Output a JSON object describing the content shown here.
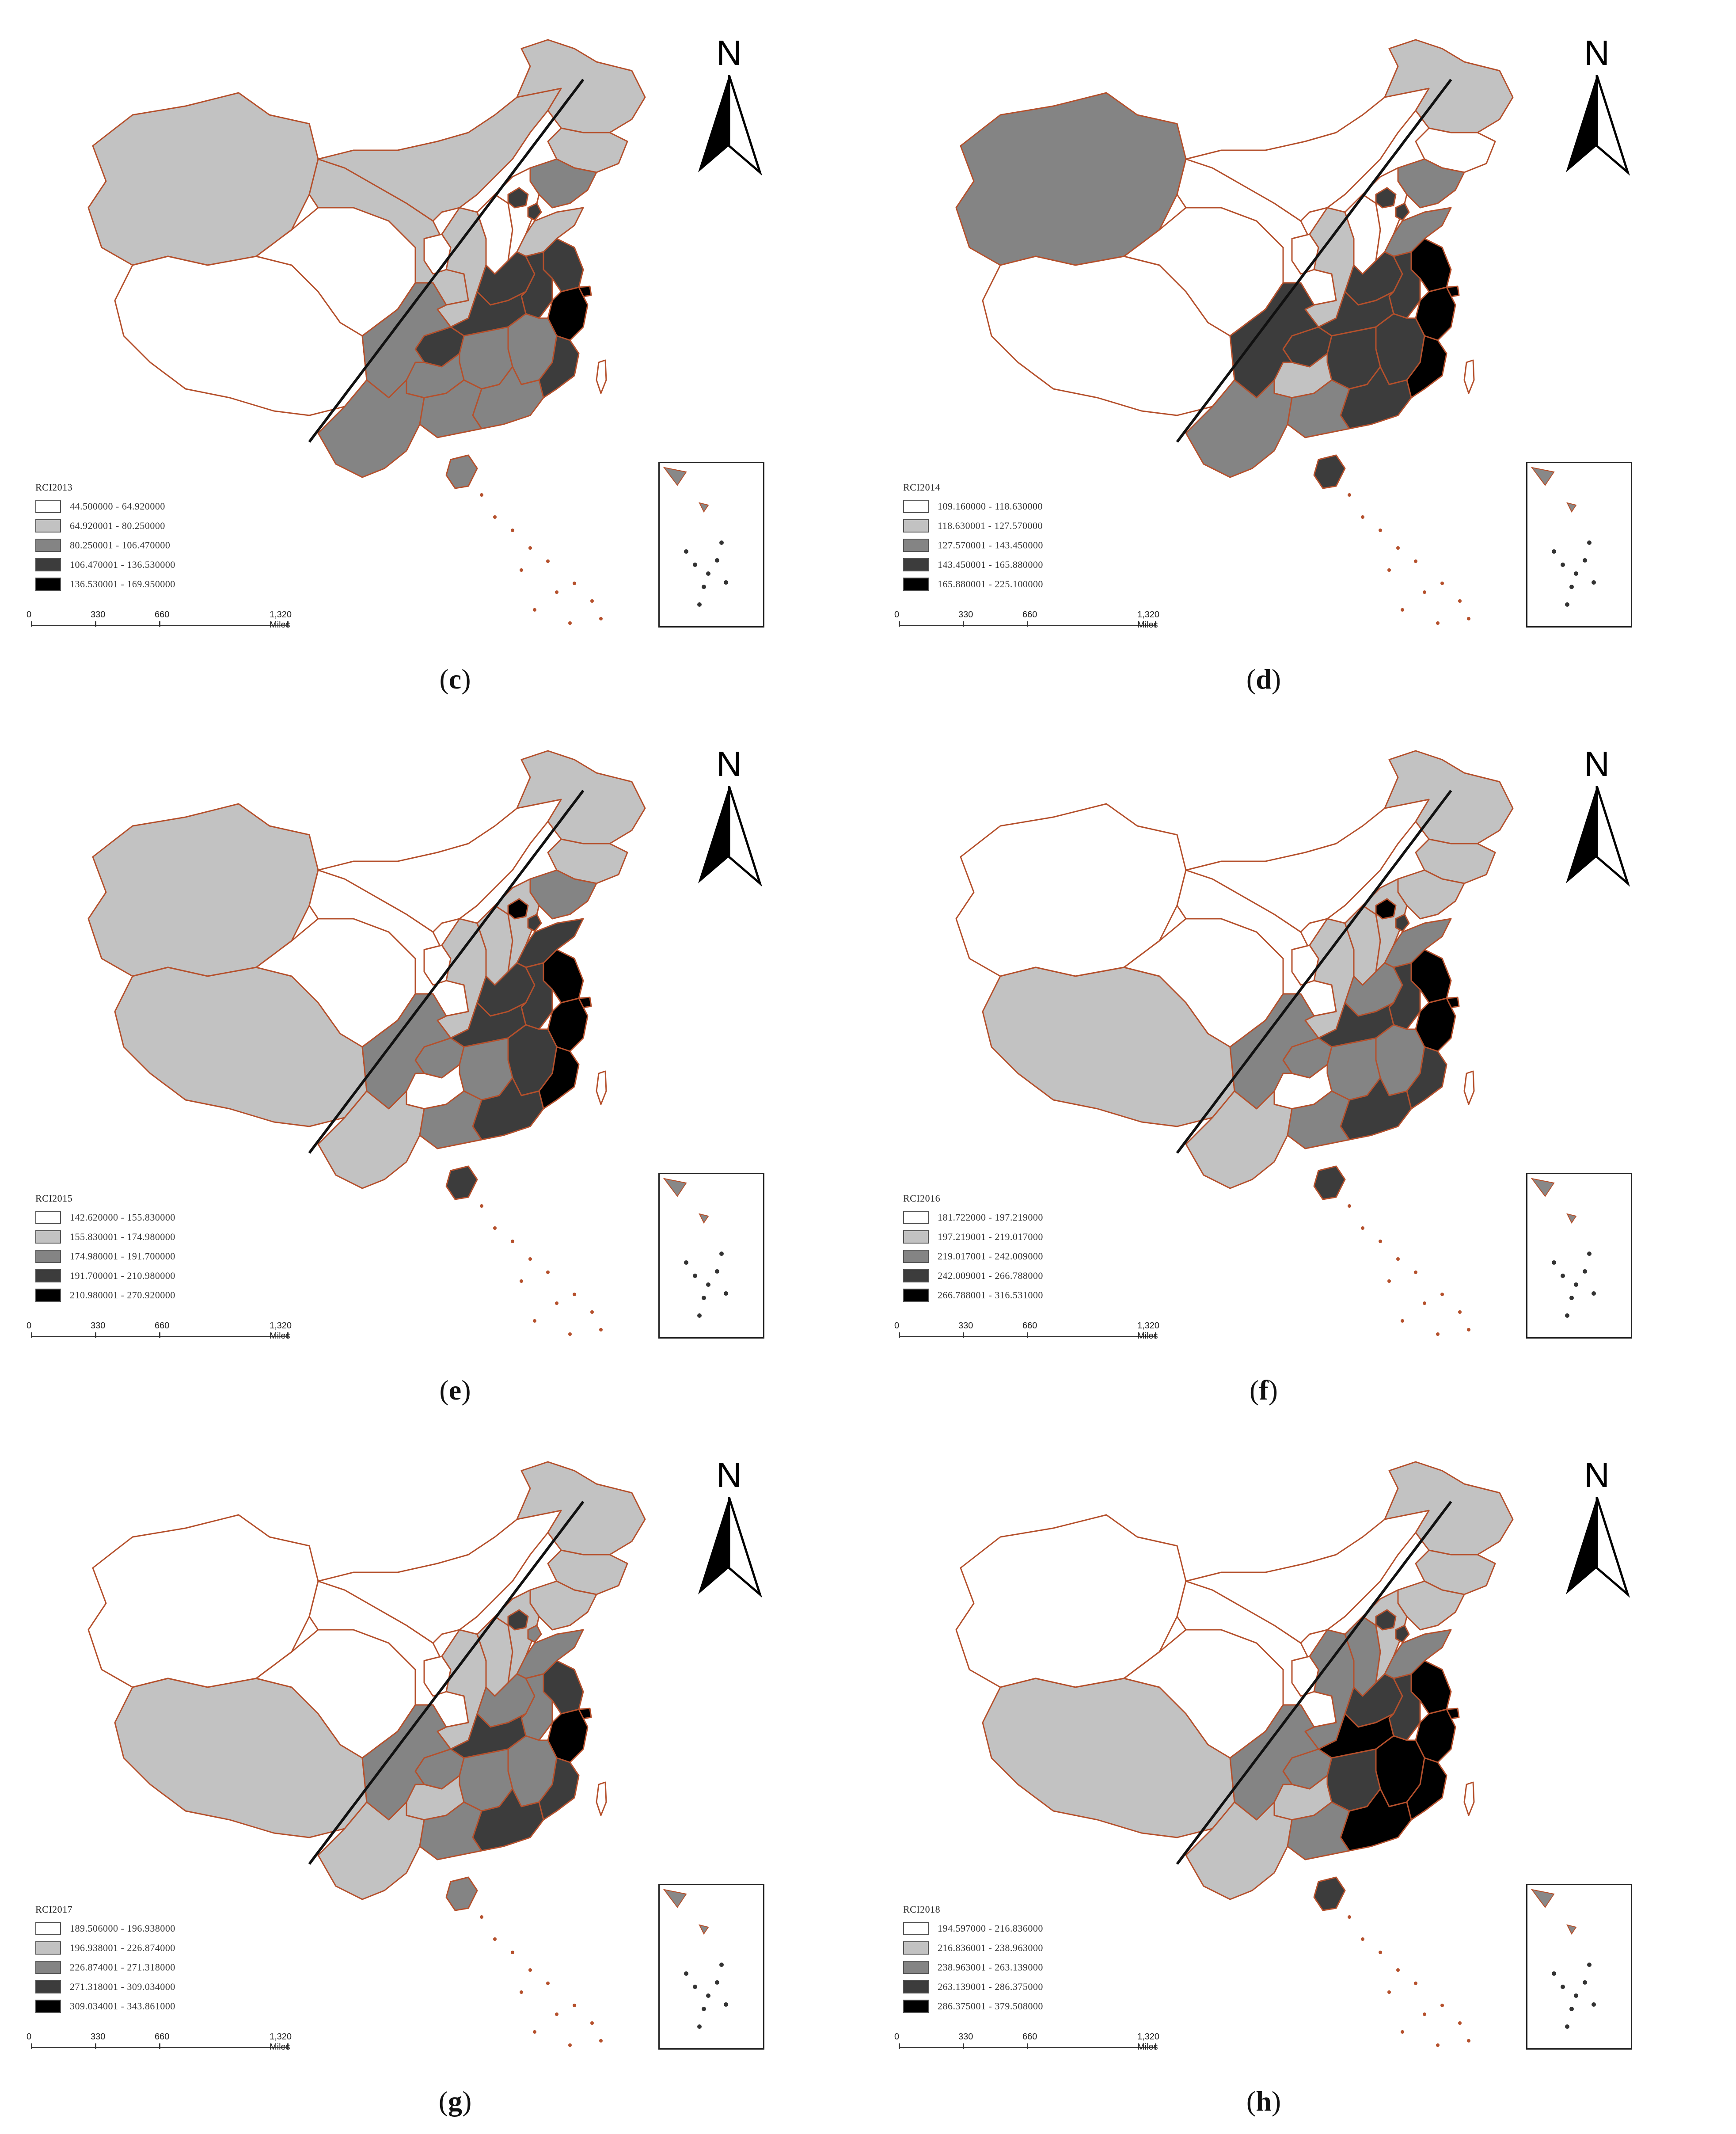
{
  "colors": {
    "class1": "#ffffff",
    "class2": "#c2c2c2",
    "class3": "#848484",
    "class4": "#3c3c3c",
    "class5": "#000000",
    "boundary": "#b5502c",
    "line": "#111111"
  },
  "icons": {
    "north_arrow": "north-arrow-icon",
    "inset": "south-china-sea-inset"
  },
  "scale": {
    "labels": [
      "0",
      "330",
      "660",
      "1,320 Miles"
    ]
  },
  "north_label": "N",
  "panels": [
    {
      "caption": "c",
      "legend_title": "RCI2013",
      "legend": [
        "44.500000 - 64.920000",
        "64.920001 - 80.250000",
        "80.250001 - 106.470000",
        "106.470001 - 136.530000",
        "136.530001 - 169.950000"
      ],
      "regions": {
        "xinjiang": 1,
        "tibet": 0,
        "qinghai": 0,
        "gansu": 1,
        "inner_mongolia": 1,
        "heilongjiang": 1,
        "jilin": 1,
        "liaoning": 2,
        "ningxia": 0,
        "shaanxi": 1,
        "shanxi": 0,
        "hebei": 0,
        "beijing": 3,
        "tianjin": 3,
        "shandong": 1,
        "sichuan": 2,
        "chongqing": 3,
        "yunnan": 2,
        "guizhou": 2,
        "guangxi": 2,
        "guangdong": 2,
        "hunan": 2,
        "hubei": 3,
        "henan": 3,
        "anhui": 3,
        "jiangsu": 3,
        "zhejiang": 4,
        "shanghai": 4,
        "jiangxi": 2,
        "fujian": 3,
        "hainan": 2,
        "taiwan": 0
      }
    },
    {
      "caption": "d",
      "legend_title": "RCI2014",
      "legend": [
        "109.160000 - 118.630000",
        "118.630001 - 127.570000",
        "127.570001 - 143.450000",
        "143.450001 - 165.880000",
        "165.880001 - 225.100000"
      ],
      "regions": {
        "xinjiang": 2,
        "tibet": 0,
        "qinghai": 0,
        "gansu": 0,
        "inner_mongolia": 0,
        "heilongjiang": 1,
        "jilin": 0,
        "liaoning": 2,
        "ningxia": 0,
        "shaanxi": 1,
        "shanxi": 0,
        "hebei": 0,
        "beijing": 3,
        "tianjin": 3,
        "shandong": 2,
        "sichuan": 3,
        "chongqing": 3,
        "yunnan": 2,
        "guizhou": 1,
        "guangxi": 2,
        "guangdong": 3,
        "hunan": 3,
        "hubei": 3,
        "henan": 3,
        "anhui": 3,
        "jiangsu": 4,
        "zhejiang": 4,
        "shanghai": 4,
        "jiangxi": 3,
        "fujian": 4,
        "hainan": 3,
        "taiwan": 0
      }
    },
    {
      "caption": "e",
      "legend_title": "RCI2015",
      "legend": [
        "142.620000 - 155.830000",
        "155.830001 - 174.980000",
        "174.980001 - 191.700000",
        "191.700001 - 210.980000",
        "210.980001 - 270.920000"
      ],
      "regions": {
        "xinjiang": 1,
        "tibet": 1,
        "qinghai": 0,
        "gansu": 0,
        "inner_mongolia": 0,
        "heilongjiang": 1,
        "jilin": 1,
        "liaoning": 2,
        "ningxia": 0,
        "shaanxi": 1,
        "shanxi": 1,
        "hebei": 1,
        "beijing": 4,
        "tianjin": 3,
        "shandong": 3,
        "sichuan": 2,
        "chongqing": 2,
        "yunnan": 1,
        "guizhou": 0,
        "guangxi": 2,
        "guangdong": 3,
        "hunan": 2,
        "hubei": 3,
        "henan": 3,
        "anhui": 3,
        "jiangsu": 4,
        "zhejiang": 4,
        "shanghai": 4,
        "jiangxi": 3,
        "fujian": 4,
        "hainan": 3,
        "taiwan": 0
      }
    },
    {
      "caption": "f",
      "legend_title": "RCI2016",
      "legend": [
        "181.722000 - 197.219000",
        "197.219001 - 219.017000",
        "219.017001 - 242.009000",
        "242.009001 - 266.788000",
        "266.788001 - 316.531000"
      ],
      "regions": {
        "xinjiang": 0,
        "tibet": 1,
        "qinghai": 0,
        "gansu": 0,
        "inner_mongolia": 0,
        "heilongjiang": 1,
        "jilin": 1,
        "liaoning": 1,
        "ningxia": 0,
        "shaanxi": 1,
        "shanxi": 1,
        "hebei": 1,
        "beijing": 4,
        "tianjin": 3,
        "shandong": 2,
        "sichuan": 2,
        "chongqing": 2,
        "yunnan": 1,
        "guizhou": 0,
        "guangxi": 2,
        "guangdong": 3,
        "hunan": 2,
        "hubei": 3,
        "henan": 2,
        "anhui": 3,
        "jiangsu": 4,
        "zhejiang": 4,
        "shanghai": 4,
        "jiangxi": 2,
        "fujian": 3,
        "hainan": 3,
        "taiwan": 0
      }
    },
    {
      "caption": "g",
      "legend_title": "RCI2017",
      "legend": [
        "189.506000 - 196.938000",
        "196.938001 - 226.874000",
        "226.874001 - 271.318000",
        "271.318001 - 309.034000",
        "309.034001 - 343.861000"
      ],
      "regions": {
        "xinjiang": 0,
        "tibet": 1,
        "qinghai": 0,
        "gansu": 0,
        "inner_mongolia": 0,
        "heilongjiang": 1,
        "jilin": 1,
        "liaoning": 1,
        "ningxia": 0,
        "shaanxi": 1,
        "shanxi": 1,
        "hebei": 1,
        "beijing": 3,
        "tianjin": 2,
        "shandong": 2,
        "sichuan": 2,
        "chongqing": 2,
        "yunnan": 1,
        "guizhou": 1,
        "guangxi": 2,
        "guangdong": 3,
        "hunan": 2,
        "hubei": 3,
        "henan": 2,
        "anhui": 2,
        "jiangsu": 3,
        "zhejiang": 4,
        "shanghai": 4,
        "jiangxi": 2,
        "fujian": 3,
        "hainan": 2,
        "taiwan": 0
      }
    },
    {
      "caption": "h",
      "legend_title": "RCI2018",
      "legend": [
        "194.597000 - 216.836000",
        "216.836001 - 238.963000",
        "238.963001 - 263.139000",
        "263.139001 - 286.375000",
        "286.375001 - 379.508000"
      ],
      "regions": {
        "xinjiang": 0,
        "tibet": 1,
        "qinghai": 0,
        "gansu": 0,
        "inner_mongolia": 0,
        "heilongjiang": 1,
        "jilin": 1,
        "liaoning": 1,
        "ningxia": 0,
        "shaanxi": 2,
        "shanxi": 2,
        "hebei": 1,
        "beijing": 3,
        "tianjin": 3,
        "shandong": 2,
        "sichuan": 2,
        "chongqing": 2,
        "yunnan": 1,
        "guizhou": 1,
        "guangxi": 2,
        "guangdong": 4,
        "hunan": 3,
        "hubei": 4,
        "henan": 3,
        "anhui": 3,
        "jiangsu": 4,
        "zhejiang": 4,
        "shanghai": 4,
        "jiangxi": 4,
        "fujian": 4,
        "hainan": 3,
        "taiwan": 0
      }
    }
  ]
}
